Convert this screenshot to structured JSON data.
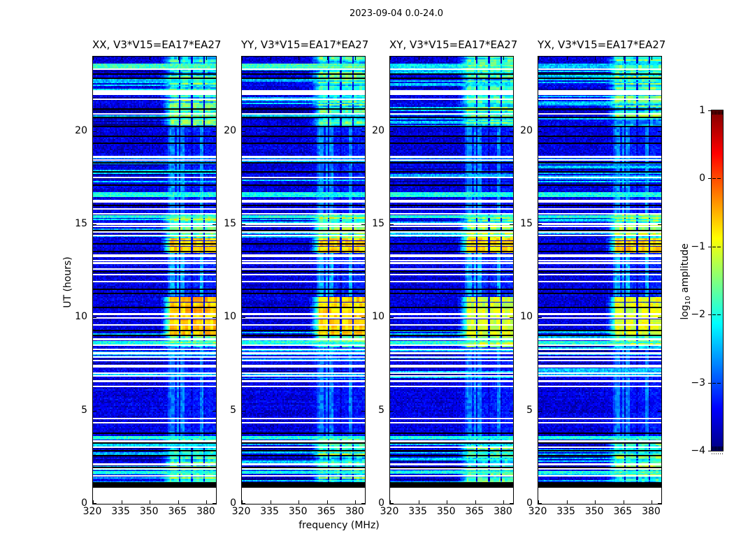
{
  "figure": {
    "title": "2023-09-04 0.0-24.0",
    "xlabel": "frequency (MHz)",
    "ylabel": "UT (hours)",
    "colorbar_label": {
      "pre": "log",
      "sub": "10",
      "post": " amplitude"
    },
    "background": "#ffffff"
  },
  "chart_data": {
    "type": "heatmap",
    "panels": [
      {
        "label": "XX, V3*V15=EA17*EA27",
        "seed": 11
      },
      {
        "label": "YY, V3*V15=EA17*EA27",
        "seed": 22
      },
      {
        "label": "XY, V3*V15=EA17*EA27",
        "seed": 33
      },
      {
        "label": "YX, V3*V15=EA17*EA27",
        "seed": 44
      }
    ],
    "x_axis": {
      "label": "frequency (MHz)",
      "min": 320,
      "max": 385,
      "ticks": [
        320,
        335,
        350,
        365,
        380
      ],
      "unit": "MHz"
    },
    "y_axis": {
      "label": "UT (hours)",
      "min": 0,
      "max": 24,
      "ticks": [
        0,
        5,
        10,
        15,
        20
      ],
      "unit": "hours"
    },
    "colorbar": {
      "label": "log10 amplitude",
      "colormap": "jet",
      "min": -4,
      "max": 1,
      "tick_values": [
        1,
        0,
        -1,
        -2,
        -3,
        -4
      ],
      "tick_labels": [
        "1",
        "0",
        "−1",
        "−2",
        "−3",
        "−4"
      ]
    },
    "events": {
      "background_level": -3.55,
      "clim": [
        -4,
        1
      ],
      "no_data_ut": [
        0,
        0.86
      ],
      "flagged_black_ut": [
        0.86,
        1.18
      ],
      "white_bands_ut": [
        [
          21.95,
          22.2
        ],
        [
          16.15,
          16.3
        ],
        [
          13.24,
          13.38
        ],
        [
          12.86,
          12.99
        ],
        [
          7.33,
          7.47
        ],
        [
          6.52,
          6.65
        ],
        [
          3.3,
          3.42
        ]
      ],
      "white_lines_ut": [
        23.33,
        21.7,
        20.92,
        18.62,
        18.45,
        17.5,
        15.82,
        15.55,
        15.02,
        14.88,
        14.58,
        14.4,
        13.05,
        12.6,
        12.3,
        11.92,
        10.18,
        9.97,
        9.6,
        8.83,
        8.52,
        8.28,
        8.08,
        7.88,
        7.7,
        7.0,
        6.85,
        6.3,
        4.57,
        4.35,
        3.05,
        2.12,
        1.87,
        1.5
      ],
      "black_lines_ut": [
        23.05,
        22.82,
        21.2,
        20.72,
        20.25,
        19.73,
        19.35,
        18.3,
        17.82,
        17.1,
        16.0,
        14.68,
        13.95,
        13.55,
        12.45,
        11.52,
        11.3,
        10.55,
        9.3,
        9.05,
        3.8,
        3.25,
        2.85,
        2.6,
        1.95
      ],
      "bright_rows_ut": [
        [
          23.35,
          23.62,
          [
            0.75,
            0.7,
            0.35,
            0.1
          ]
        ],
        [
          16.45,
          16.72,
          null
        ],
        [
          15.32,
          15.48,
          null
        ],
        [
          8.55,
          8.75,
          null
        ],
        [
          3.45,
          3.65,
          null
        ],
        [
          1.62,
          1.75,
          null
        ]
      ],
      "stripe_zones_ut": [
        [
          22.2,
          23.3
        ],
        [
          20.3,
          21.9
        ],
        [
          17.25,
          18.65
        ],
        [
          14.3,
          15.55
        ],
        [
          8.0,
          9.3
        ],
        [
          6.7,
          7.95
        ],
        [
          1.18,
          3.5
        ]
      ],
      "rfi_band_mhz": [
        356,
        385
      ],
      "rfi_column_gaps_mhz": [
        365.8,
        372.3,
        378.8
      ],
      "rfi_streaks_mhz": [
        [
          359.5,
          363.2
        ],
        [
          364.5,
          368.2
        ],
        [
          376.6,
          379.0
        ]
      ],
      "rfi_windows": [
        {
          "ut": [
            13.45,
            14.25
          ],
          "level": -0.7,
          "panel_gain": [
            0.05,
            0,
            -0.05,
            -0.05
          ]
        },
        {
          "ut": [
            9.0,
            11.15
          ],
          "level": -0.8,
          "panel_gain": [
            0.2,
            0.1,
            -0.3,
            -0.25
          ]
        },
        {
          "ut": [
            14.25,
            15.55
          ],
          "level": -1.6
        },
        {
          "ut": [
            8.4,
            9.0
          ],
          "level": -1.7
        },
        {
          "ut": [
            1.18,
            3.5
          ],
          "level": -1.8
        },
        {
          "ut": [
            20.3,
            24.0
          ],
          "level": -2.0
        },
        {
          "ut": [
            11.15,
            13.45
          ],
          "level": -2.4
        },
        {
          "ut": [
            15.55,
            20.3
          ],
          "level": -2.6
        },
        {
          "ut": [
            3.5,
            8.4
          ],
          "level": -2.7
        }
      ]
    }
  }
}
